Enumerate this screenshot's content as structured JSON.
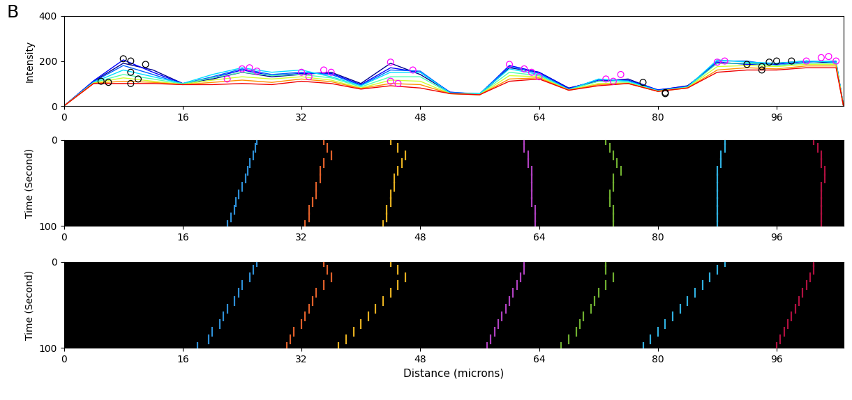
{
  "panel_label": "B",
  "chart_data": [
    {
      "type": "line",
      "ylabel": "Intensity",
      "xlim": [
        0,
        105
      ],
      "xticks": [
        0,
        16,
        32,
        48,
        64,
        80,
        96
      ],
      "ylim": [
        0,
        400
      ],
      "yticks": [
        0,
        200,
        400
      ],
      "x": [
        0,
        4,
        8,
        12,
        16,
        20,
        24,
        28,
        32,
        36,
        40,
        44,
        48,
        52,
        56,
        60,
        64,
        68,
        72,
        76,
        80,
        84,
        88,
        92,
        96,
        100,
        104,
        105
      ],
      "series": [
        {
          "color": "#00008f",
          "values": [
            0,
            110,
            190,
            160,
            100,
            120,
            150,
            130,
            140,
            150,
            100,
            190,
            140,
            60,
            50,
            170,
            150,
            80,
            110,
            120,
            70,
            90,
            190,
            190,
            190,
            200,
            190,
            0
          ]
        },
        {
          "color": "#0000ff",
          "values": [
            0,
            112,
            205,
            150,
            100,
            125,
            160,
            135,
            145,
            145,
            95,
            170,
            150,
            62,
            52,
            180,
            150,
            78,
            115,
            115,
            72,
            88,
            195,
            185,
            185,
            200,
            195,
            0
          ]
        },
        {
          "color": "#0060ff",
          "values": [
            0,
            108,
            180,
            140,
            98,
            130,
            165,
            140,
            150,
            140,
            92,
            160,
            155,
            60,
            55,
            175,
            145,
            75,
            118,
            112,
            70,
            85,
            200,
            200,
            180,
            195,
            200,
            0
          ]
        },
        {
          "color": "#00dfff",
          "values": [
            0,
            105,
            160,
            130,
            100,
            140,
            170,
            150,
            160,
            130,
            90,
            150,
            150,
            58,
            55,
            165,
            140,
            72,
            120,
            110,
            68,
            85,
            205,
            195,
            190,
            200,
            195,
            0
          ]
        },
        {
          "color": "#50ffaf",
          "values": [
            0,
            104,
            140,
            120,
            98,
            125,
            150,
            135,
            140,
            125,
            85,
            130,
            130,
            56,
            52,
            150,
            135,
            72,
            110,
            105,
            66,
            82,
            190,
            190,
            180,
            190,
            190,
            0
          ]
        },
        {
          "color": "#cfff30",
          "values": [
            0,
            102,
            125,
            110,
            96,
            115,
            130,
            120,
            130,
            115,
            80,
            115,
            110,
            55,
            50,
            135,
            130,
            71,
            100,
            102,
            66,
            82,
            175,
            180,
            175,
            185,
            185,
            0
          ]
        },
        {
          "color": "#ff9000",
          "values": [
            0,
            101,
            110,
            105,
            95,
            105,
            115,
            105,
            120,
            108,
            78,
            100,
            95,
            55,
            50,
            120,
            125,
            70,
            95,
            100,
            65,
            80,
            160,
            170,
            165,
            178,
            178,
            0
          ]
        },
        {
          "color": "#ef0000",
          "values": [
            0,
            100,
            100,
            100,
            95,
            95,
            100,
            95,
            110,
            100,
            75,
            90,
            80,
            55,
            50,
            110,
            120,
            70,
            90,
            100,
            65,
            80,
            150,
            160,
            160,
            170,
            170,
            0
          ]
        },
        {
          "type": "scatter",
          "marker": "o",
          "color": "#ff00ff",
          "x": [
            22,
            24,
            25,
            26,
            32,
            33,
            35,
            36,
            44,
            44,
            45,
            47,
            60,
            62,
            63,
            64,
            73,
            74,
            75,
            88,
            89,
            100,
            102,
            103,
            104
          ],
          "values": [
            120,
            165,
            170,
            155,
            150,
            130,
            160,
            150,
            195,
            110,
            100,
            160,
            185,
            165,
            150,
            130,
            120,
            110,
            140,
            195,
            200,
            200,
            215,
            220,
            200
          ]
        },
        {
          "type": "scatter",
          "marker": "o",
          "color": "#000000",
          "x": [
            5,
            6,
            8,
            9,
            9,
            9,
            10,
            11,
            78,
            81,
            81,
            92,
            94,
            94,
            95,
            96,
            98
          ],
          "values": [
            110,
            105,
            210,
            200,
            150,
            100,
            120,
            185,
            105,
            60,
            55,
            185,
            175,
            160,
            195,
            200,
            200
          ]
        }
      ]
    },
    {
      "type": "scatter",
      "ylabel": "Time (Second)",
      "xlim": [
        0,
        105
      ],
      "xticks": [
        0,
        16,
        32,
        48,
        64,
        80,
        96
      ],
      "ylim": [
        100,
        0
      ],
      "yticks": [
        0,
        100
      ],
      "series": [
        {
          "color": "#2e8fd6",
          "marker": "|",
          "x": [
            26,
            25.8,
            25.5,
            25,
            24.8,
            24.5,
            24,
            23.5,
            23.2,
            23,
            22.5,
            22
          ],
          "values": [
            0,
            9,
            18,
            27,
            36,
            45,
            54,
            63,
            72,
            81,
            90,
            99
          ]
        },
        {
          "color": "#e0602a",
          "marker": "|",
          "x": [
            35,
            35.5,
            36,
            35,
            34.5,
            34.5,
            34,
            34,
            33.5,
            33,
            33,
            32.5
          ],
          "values": [
            0,
            9,
            18,
            27,
            36,
            45,
            54,
            63,
            72,
            81,
            90,
            99
          ]
        },
        {
          "color": "#e6b020",
          "marker": "|",
          "x": [
            44,
            45,
            46,
            45.5,
            45,
            44.5,
            44.5,
            44,
            44,
            43.5,
            43.5,
            43
          ],
          "values": [
            0,
            9,
            18,
            27,
            36,
            45,
            54,
            63,
            72,
            81,
            90,
            99
          ]
        },
        {
          "color": "#b040c0",
          "marker": "|",
          "x": [
            62,
            62,
            62.5,
            62.5,
            63,
            63,
            63,
            63,
            63,
            63.5,
            63.5,
            63.5
          ],
          "values": [
            0,
            9,
            18,
            27,
            36,
            45,
            54,
            63,
            72,
            81,
            90,
            99
          ]
        },
        {
          "color": "#70b030",
          "marker": "|",
          "x": [
            73,
            73.5,
            74,
            74.5,
            75,
            74,
            74,
            73.5,
            73.5,
            74,
            74,
            74
          ],
          "values": [
            0,
            9,
            18,
            27,
            36,
            45,
            54,
            63,
            72,
            81,
            90,
            99
          ]
        },
        {
          "color": "#30b0e0",
          "marker": "|",
          "x": [
            89,
            89,
            88.5,
            88.5,
            88,
            88,
            88,
            88,
            88,
            88,
            88,
            88
          ],
          "values": [
            0,
            9,
            18,
            27,
            36,
            45,
            54,
            63,
            72,
            81,
            90,
            99
          ]
        },
        {
          "color": "#b01040",
          "marker": "|",
          "x": [
            101,
            101.5,
            102,
            102,
            102.5,
            102.5,
            102,
            102,
            102,
            102,
            102,
            102
          ],
          "values": [
            0,
            9,
            18,
            27,
            36,
            45,
            54,
            63,
            72,
            81,
            90,
            99
          ]
        }
      ]
    },
    {
      "type": "scatter",
      "ylabel": "Time (Second)",
      "xlabel": "Distance (microns)",
      "xlim": [
        0,
        105
      ],
      "xticks": [
        0,
        16,
        32,
        48,
        64,
        80,
        96
      ],
      "ylim": [
        100,
        0
      ],
      "yticks": [
        0,
        100
      ],
      "series": [
        {
          "color": "#2e8fd6",
          "marker": "|",
          "x": [
            26,
            25.5,
            25,
            24,
            23.5,
            23,
            22,
            21.5,
            21,
            20,
            19.5,
            18
          ],
          "values": [
            0,
            9,
            18,
            27,
            36,
            45,
            54,
            63,
            72,
            81,
            90,
            99
          ]
        },
        {
          "color": "#e0602a",
          "marker": "|",
          "x": [
            35,
            35.5,
            36,
            35,
            34,
            33.5,
            33,
            32.5,
            32,
            31,
            30.5,
            30
          ],
          "values": [
            0,
            9,
            18,
            27,
            36,
            45,
            54,
            63,
            72,
            81,
            90,
            99
          ]
        },
        {
          "color": "#e6b020",
          "marker": "|",
          "x": [
            44,
            45,
            46,
            45,
            44,
            43,
            42,
            41,
            40,
            39,
            38,
            37
          ],
          "values": [
            0,
            9,
            18,
            27,
            36,
            45,
            54,
            63,
            72,
            81,
            90,
            99
          ]
        },
        {
          "color": "#b040c0",
          "marker": "|",
          "x": [
            62,
            62,
            61.5,
            61,
            60.5,
            60,
            59.5,
            59,
            58.5,
            58,
            57.5,
            57
          ],
          "values": [
            0,
            9,
            18,
            27,
            36,
            45,
            54,
            63,
            72,
            81,
            90,
            99
          ]
        },
        {
          "color": "#70b030",
          "marker": "|",
          "x": [
            73,
            73,
            74,
            73,
            72,
            71.5,
            71,
            70,
            69.5,
            69,
            68,
            67
          ],
          "values": [
            0,
            9,
            18,
            27,
            36,
            45,
            54,
            63,
            72,
            81,
            90,
            99
          ]
        },
        {
          "color": "#30b0e0",
          "marker": "|",
          "x": [
            89,
            88,
            87,
            86,
            85,
            84,
            83,
            82,
            81,
            80,
            79,
            78
          ],
          "values": [
            0,
            9,
            18,
            27,
            36,
            45,
            54,
            63,
            72,
            81,
            90,
            99
          ]
        },
        {
          "color": "#b01040",
          "marker": "|",
          "x": [
            101,
            101,
            100.5,
            100,
            99.5,
            99,
            98.5,
            98,
            97.5,
            97,
            96.5,
            96
          ],
          "values": [
            0,
            9,
            18,
            27,
            36,
            45,
            54,
            63,
            72,
            81,
            90,
            99
          ]
        }
      ]
    }
  ]
}
